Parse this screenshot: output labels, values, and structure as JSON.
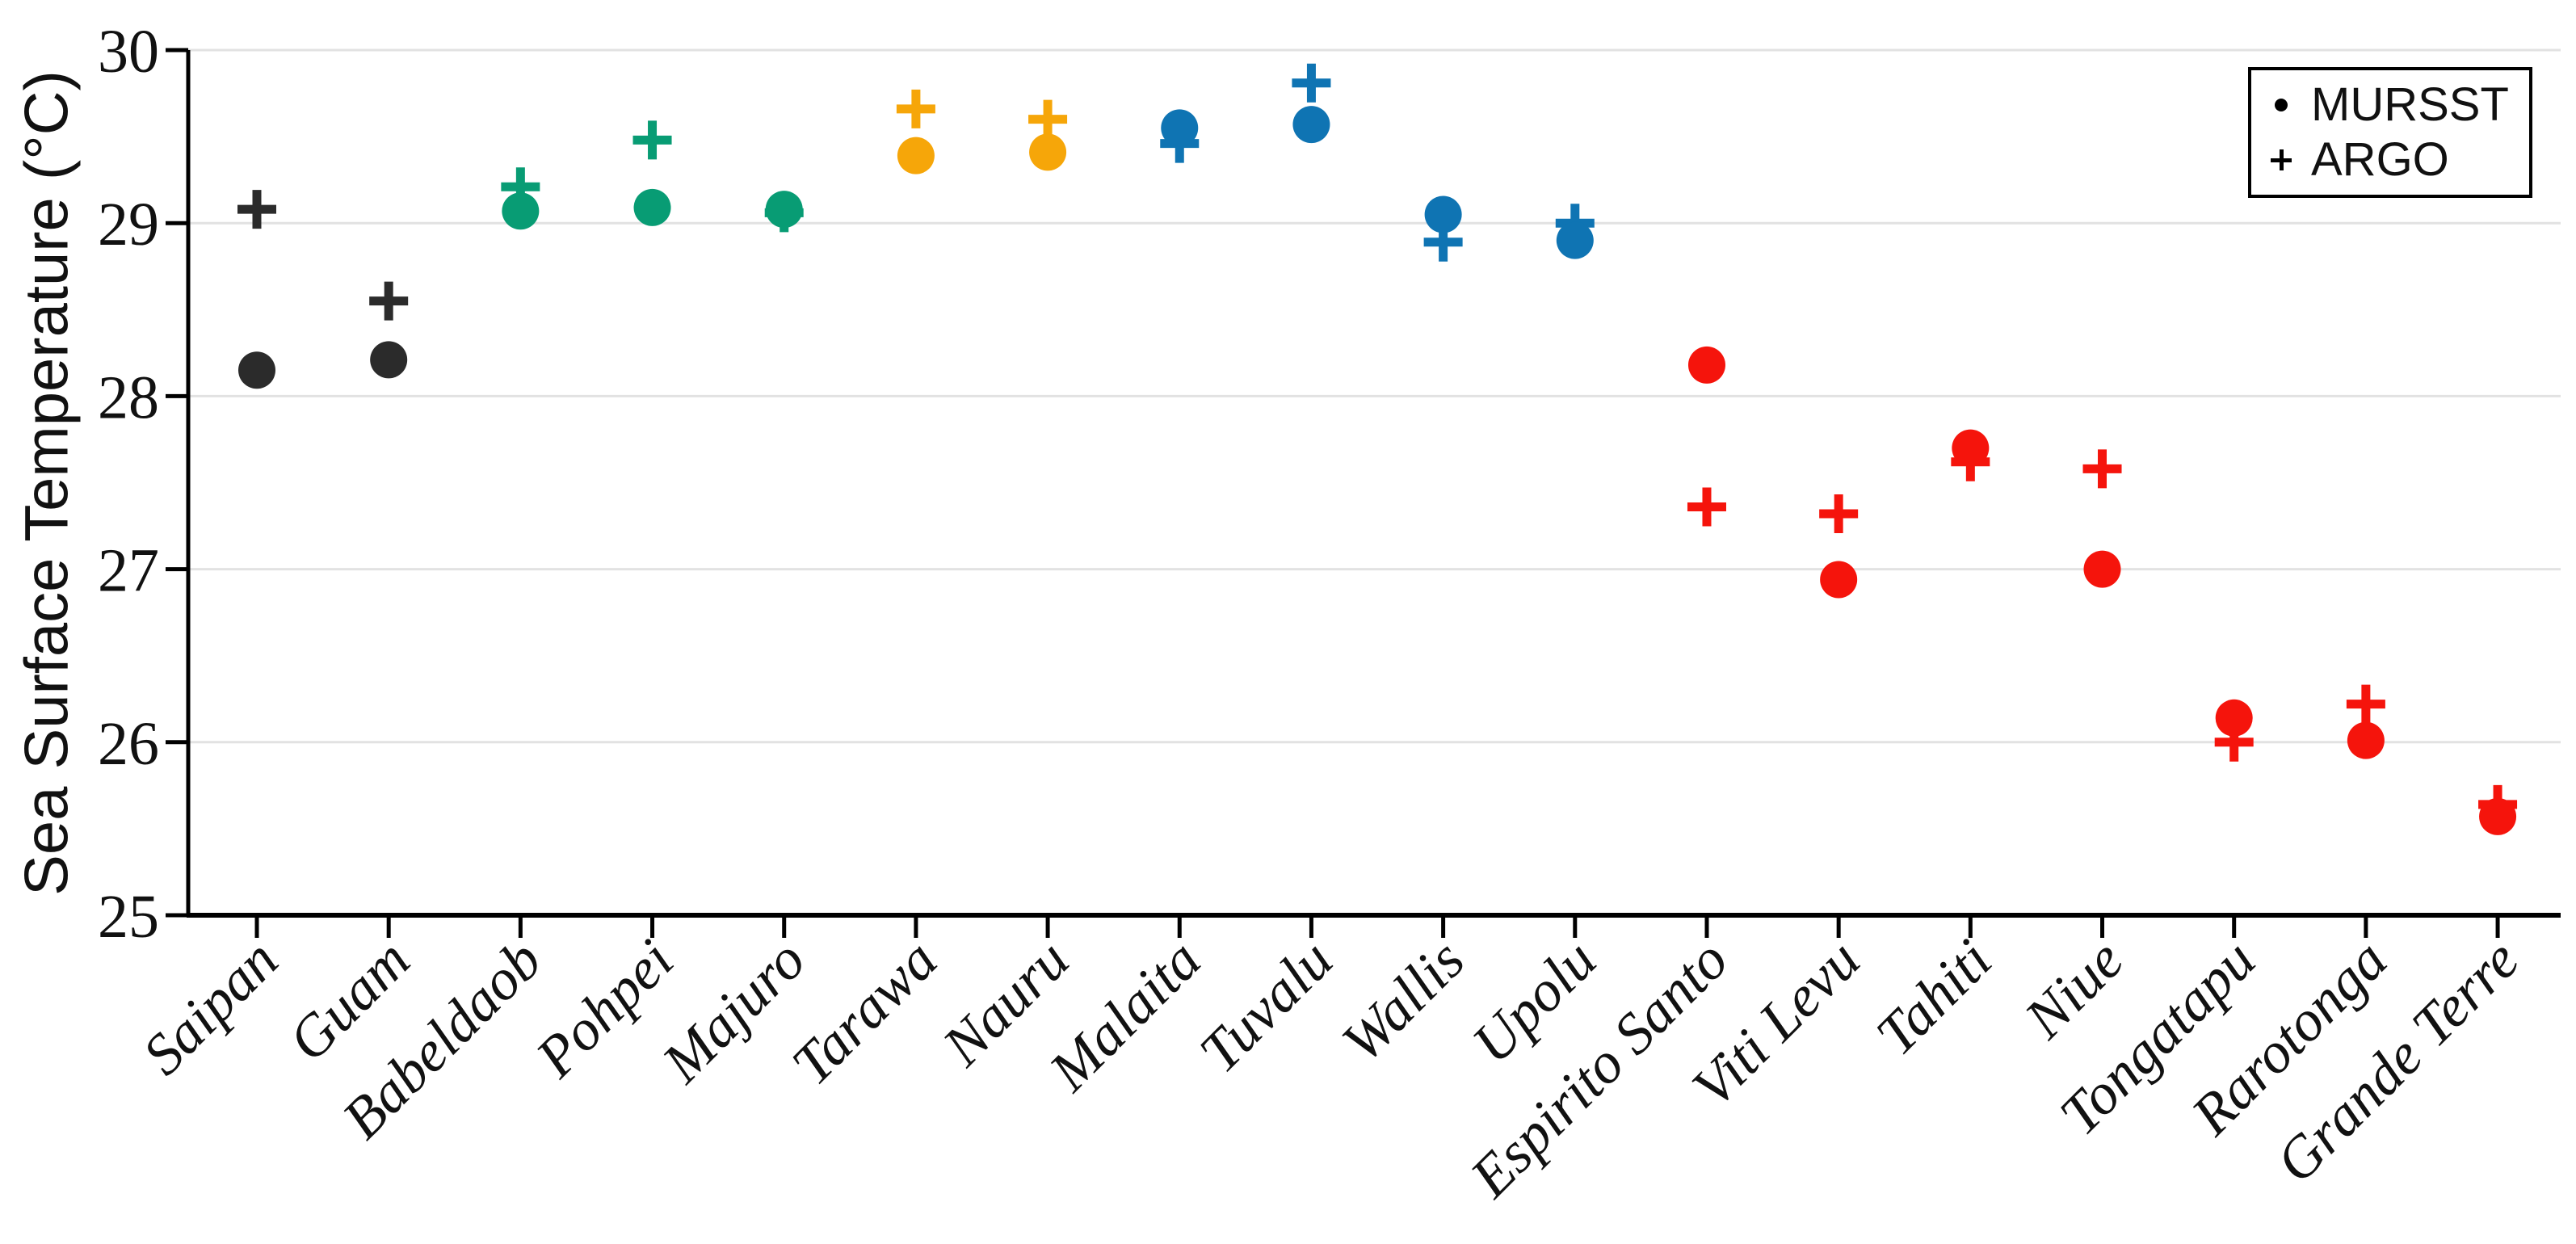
{
  "figure": {
    "background": "#ffffff"
  },
  "y_axis": {
    "label": "Sea Surface Temperature (°C)",
    "min": 25,
    "max": 30,
    "ticks": [
      25,
      26,
      27,
      28,
      29,
      30
    ]
  },
  "legend": {
    "items": [
      {
        "label": "MURSST",
        "marker": "dot"
      },
      {
        "label": "ARGO",
        "marker": "plus"
      }
    ]
  },
  "colors": {
    "axis": "#000000",
    "grid": "#e2e2e2",
    "tick_text": "#111111",
    "black_group": "#2b2b2b",
    "green_group": "#089c74",
    "orange_group": "#f6a609",
    "blue_group": "#0f74b3",
    "red_group": "#f5140c"
  },
  "chart_data": {
    "type": "scatter",
    "title": "",
    "xlabel": "",
    "ylabel": "Sea Surface Temperature (°C)",
    "ylim": [
      25,
      30
    ],
    "yticks": [
      25,
      26,
      27,
      28,
      29,
      30
    ],
    "grid": "horizontal",
    "legend_position": "upper right",
    "categories": [
      "Saipan",
      "Guam",
      "Babeldaob",
      "Pohpei",
      "Majuro",
      "Tarawa",
      "Nauru",
      "Malaita",
      "Tuvalu",
      "Wallis",
      "Upolu",
      "Espirito Santo",
      "Viti Levu",
      "Tahiti",
      "Niue",
      "Tongatapu",
      "Rarotonga",
      "Grande Terre"
    ],
    "point_colors": [
      "#2b2b2b",
      "#2b2b2b",
      "#089c74",
      "#089c74",
      "#089c74",
      "#f6a609",
      "#f6a609",
      "#0f74b3",
      "#0f74b3",
      "#0f74b3",
      "#0f74b3",
      "#f5140c",
      "#f5140c",
      "#f5140c",
      "#f5140c",
      "#f5140c",
      "#f5140c",
      "#f5140c"
    ],
    "series": [
      {
        "name": "MURSST",
        "marker": "dot",
        "values": [
          28.15,
          28.21,
          29.07,
          29.09,
          29.08,
          29.39,
          29.41,
          29.55,
          29.57,
          29.05,
          28.9,
          28.18,
          26.94,
          27.7,
          27.0,
          26.14,
          26.01,
          25.57
        ]
      },
      {
        "name": "ARGO",
        "marker": "plus",
        "values": [
          29.08,
          28.55,
          29.21,
          29.48,
          29.06,
          29.66,
          29.6,
          29.46,
          29.81,
          28.89,
          29.0,
          27.36,
          27.32,
          27.62,
          27.58,
          26.0,
          26.22,
          25.64
        ]
      }
    ]
  }
}
